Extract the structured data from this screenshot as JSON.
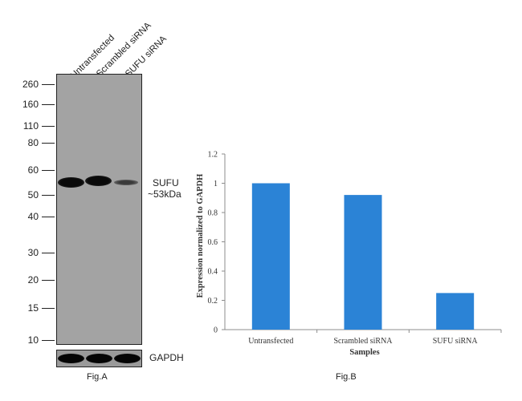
{
  "figA": {
    "lanes": [
      "Untransfected",
      "Scrambled siRNA",
      "SUFU siRNA"
    ],
    "mw_markers": [
      "260",
      "160",
      "110",
      "80",
      "60",
      "50",
      "40",
      "30",
      "20",
      "15",
      "10"
    ],
    "band_label_line1": "SUFU",
    "band_label_line2": "~53kDa",
    "loading_control": "GAPDH",
    "caption": "Fig.A"
  },
  "figB": {
    "caption": "Fig.B"
  },
  "chart_data": {
    "type": "bar",
    "categories": [
      "Untransfected",
      "Scrambled siRNA",
      "SUFU siRNA"
    ],
    "values": [
      1.0,
      0.92,
      0.25
    ],
    "xlabel": "Samples",
    "ylabel": "Expression normalized to GAPDH",
    "ylim": [
      0,
      1.2
    ],
    "yticks": [
      "0",
      "0.2",
      "0.4",
      "0.6",
      "0.8",
      "1",
      "1.2"
    ],
    "bar_color": "#2b83d6",
    "grid": false
  }
}
